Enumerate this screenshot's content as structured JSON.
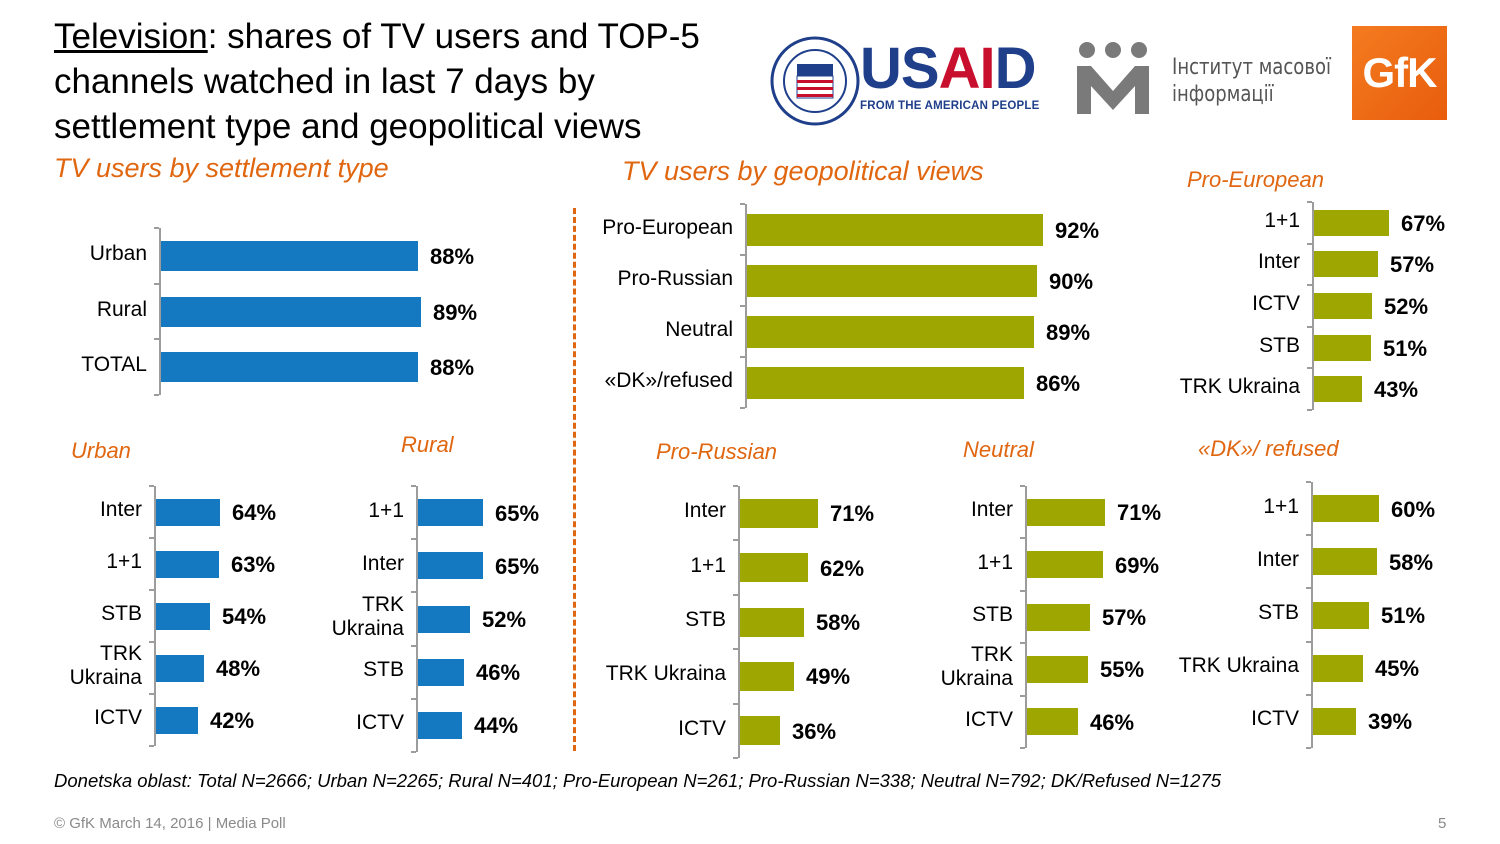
{
  "title": {
    "underlined": "Television",
    "rest": ": shares of TV users and TOP-5 channels watched in last 7 days by settlement type and geopolitical views"
  },
  "logos": {
    "usaid_main_1": "US",
    "usaid_main_2": "AI",
    "usaid_main_3": "D",
    "usaid_tagline": "FROM THE AMERICAN PEOPLE",
    "imi_line1": "Інститут масової",
    "imi_line2": "інформації",
    "gfk": "GfK"
  },
  "colors": {
    "blue": "#1479c0",
    "olive": "#9ea602",
    "accent": "#e06610"
  },
  "chart_data": [
    {
      "id": "settlement",
      "type": "bar",
      "title": "TV users  by settlement type",
      "color": "blue",
      "categories": [
        "Urban",
        "Rural",
        "TOTAL"
      ],
      "values": [
        88,
        89,
        88
      ],
      "labels": [
        "88%",
        "89%",
        "88%"
      ]
    },
    {
      "id": "geo",
      "type": "bar",
      "title": "TV users by geopolitical views",
      "color": "olive",
      "categories": [
        "Pro-European",
        "Pro-Russian",
        "Neutral",
        "«DK»/refused"
      ],
      "values": [
        92,
        90,
        89,
        86
      ],
      "labels": [
        "92%",
        "90%",
        "89%",
        "86%"
      ]
    },
    {
      "id": "proeu",
      "type": "bar",
      "title": "Pro-European",
      "color": "olive",
      "categories": [
        "1+1",
        "Inter",
        "ICTV",
        "STB",
        "TRK Ukraina"
      ],
      "values": [
        67,
        57,
        52,
        51,
        43
      ],
      "labels": [
        "67%",
        "57%",
        "52%",
        "51%",
        "43%"
      ]
    },
    {
      "id": "urban",
      "type": "bar",
      "title": "Urban",
      "color": "blue",
      "categories": [
        "Inter",
        "1+1",
        "STB",
        "TRK\nUkraina",
        "ICTV"
      ],
      "values": [
        64,
        63,
        54,
        48,
        42
      ],
      "labels": [
        "64%",
        "63%",
        "54%",
        "48%",
        "42%"
      ]
    },
    {
      "id": "rural",
      "type": "bar",
      "title": "Rural",
      "color": "blue",
      "categories": [
        "1+1",
        "Inter",
        "TRK\nUkraina",
        "STB",
        "ICTV"
      ],
      "values": [
        65,
        65,
        52,
        46,
        44
      ],
      "labels": [
        "65%",
        "65%",
        "52%",
        "46%",
        "44%"
      ]
    },
    {
      "id": "prorussian",
      "type": "bar",
      "title": "Pro-Russian",
      "color": "olive",
      "categories": [
        "Inter",
        "1+1",
        "STB",
        "TRK Ukraina",
        "ICTV"
      ],
      "values": [
        71,
        62,
        58,
        49,
        36
      ],
      "labels": [
        "71%",
        "62%",
        "58%",
        "49%",
        "36%"
      ]
    },
    {
      "id": "neutral",
      "type": "bar",
      "title": "Neutral",
      "color": "olive",
      "categories": [
        "Inter",
        "1+1",
        "STB",
        "TRK\nUkraina",
        "ICTV"
      ],
      "values": [
        71,
        69,
        57,
        55,
        46
      ],
      "labels": [
        "71%",
        "69%",
        "57%",
        "55%",
        "46%"
      ]
    },
    {
      "id": "dk",
      "type": "bar",
      "title": "«DK»/ refused",
      "color": "olive",
      "categories": [
        "1+1",
        "Inter",
        "STB",
        "TRK Ukraina",
        "ICTV"
      ],
      "values": [
        60,
        58,
        51,
        45,
        39
      ],
      "labels": [
        "60%",
        "58%",
        "51%",
        "45%",
        "39%"
      ]
    }
  ],
  "note": "Donetska oblast: Total N=2666; Urban N=2265; Rural N=401; Pro-European N=261; Pro-Russian N=338; Neutral N=792; DK/Refused N=1275",
  "footer": "© GfK March 14, 2016 | Media Poll",
  "page_number": "5"
}
